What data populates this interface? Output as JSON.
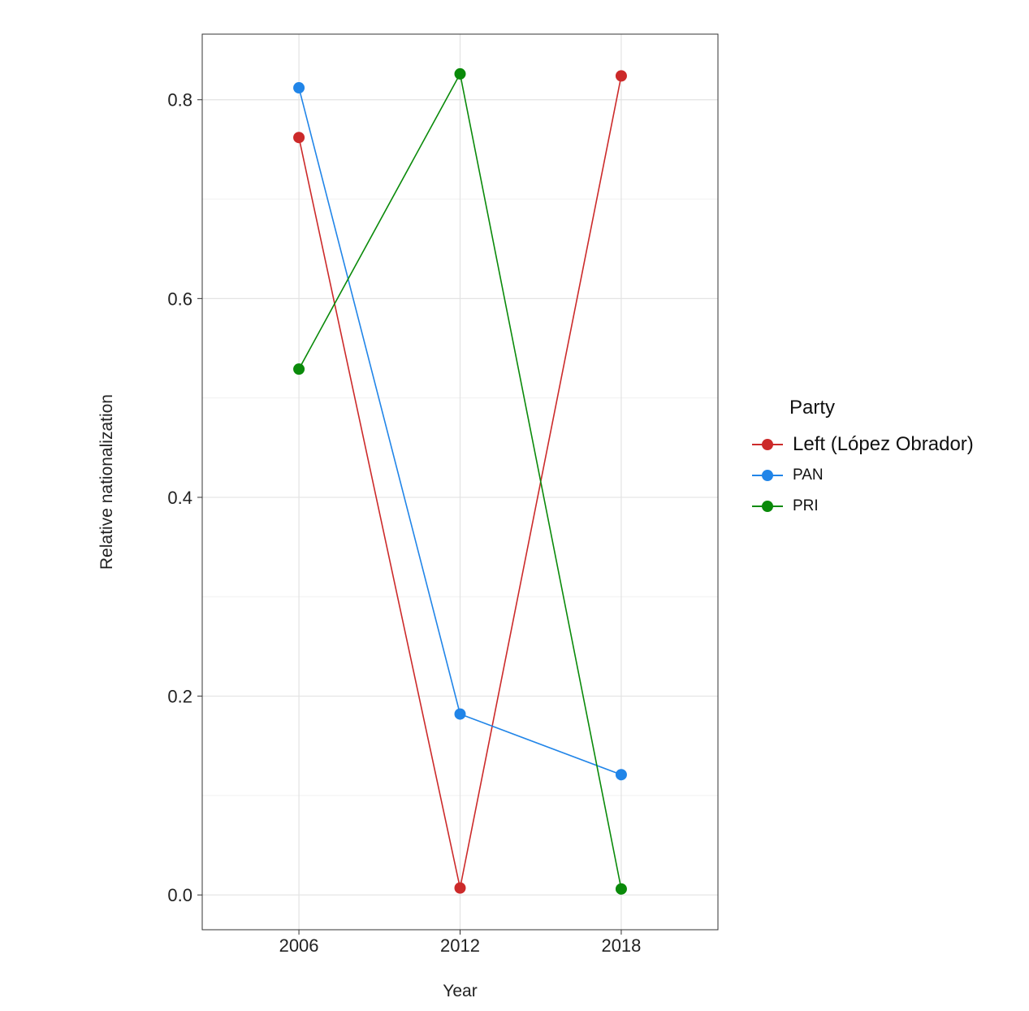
{
  "chart_data": {
    "type": "line",
    "title": "",
    "xlabel": "Year",
    "ylabel": "Relative nationalization",
    "x": [
      2006,
      2012,
      2018
    ],
    "x_tick_labels": [
      "2006",
      "2012",
      "2018"
    ],
    "y_ticks": [
      0.0,
      0.2,
      0.4,
      0.6,
      0.8
    ],
    "y_tick_labels": [
      "0.0",
      "0.2",
      "0.4",
      "0.6",
      "0.8"
    ],
    "xlim": [
      2002.4,
      2021.6
    ],
    "ylim": [
      -0.035,
      0.866
    ],
    "grid": true,
    "legend_position": "right",
    "legend_title": "Party",
    "series": [
      {
        "name": "Left (López Obrador)",
        "color": "#cc2a2a",
        "values": [
          0.762,
          0.007,
          0.824
        ]
      },
      {
        "name": "PAN",
        "color": "#2185e8",
        "values": [
          0.812,
          0.182,
          0.121
        ]
      },
      {
        "name": "PRI",
        "color": "#0a8a0a",
        "values": [
          0.529,
          0.826,
          0.006
        ]
      }
    ]
  }
}
